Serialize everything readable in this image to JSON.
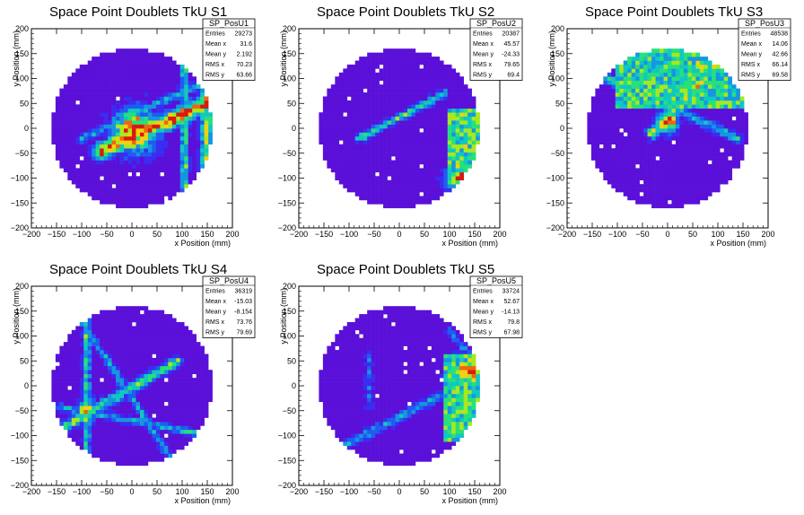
{
  "chart_data": [
    {
      "type": "heatmap",
      "title": "Space Point Doublets TkU S1",
      "xlabel": "x Position (mm)",
      "ylabel": "y Position (mm)",
      "xlim": [
        -200,
        200
      ],
      "ylim": [
        -200,
        200
      ],
      "xticks": [
        -200,
        -150,
        -100,
        -50,
        0,
        50,
        100,
        150,
        200
      ],
      "yticks": [
        -200,
        -150,
        -100,
        -50,
        0,
        50,
        100,
        150,
        200
      ],
      "tick_labels": [
        "−200",
        "−150",
        "−100",
        "−50",
        "0",
        "50",
        "100",
        "150",
        "200"
      ],
      "detector_radius": 160,
      "stats": {
        "name": "SP_PosU1",
        "rows": [
          {
            "label": "Entries",
            "value": "29273"
          },
          {
            "label": "Mean x",
            "value": "31.6"
          },
          {
            "label": "Mean y",
            "value": "2.192"
          },
          {
            "label": "RMS x",
            "value": "70.23"
          },
          {
            "label": "RMS y",
            "value": "63.66"
          }
        ]
      },
      "features": [
        {
          "kind": "band",
          "from": [
            -60,
            -45
          ],
          "to": [
            160,
            55
          ],
          "width": 22,
          "peak": 0.95
        },
        {
          "kind": "band",
          "from": [
            -100,
            -20
          ],
          "to": [
            160,
            100
          ],
          "width": 12,
          "peak": 0.35
        },
        {
          "kind": "band",
          "from": [
            105,
            -150
          ],
          "to": [
            105,
            150
          ],
          "width": 10,
          "peak": 0.55
        },
        {
          "kind": "band",
          "from": [
            150,
            -150
          ],
          "to": [
            150,
            150
          ],
          "width": 20,
          "peak": 0.6
        },
        {
          "kind": "hotspot",
          "at": [
            5,
            -5
          ],
          "radius": 28,
          "peak": 1.0
        }
      ]
    },
    {
      "type": "heatmap",
      "title": "Space Point Doublets TkU S2",
      "xlabel": "x Position (mm)",
      "ylabel": "y Position (mm)",
      "xlim": [
        -200,
        200
      ],
      "ylim": [
        -200,
        200
      ],
      "xticks": [
        -200,
        -150,
        -100,
        -50,
        0,
        50,
        100,
        150,
        200
      ],
      "yticks": [
        -200,
        -150,
        -100,
        -50,
        0,
        50,
        100,
        150,
        200
      ],
      "tick_labels": [
        "−200",
        "−150",
        "−100",
        "−50",
        "0",
        "50",
        "100",
        "150",
        "200"
      ],
      "detector_radius": 160,
      "stats": {
        "name": "SP_PosU2",
        "rows": [
          {
            "label": "Entries",
            "value": "20387"
          },
          {
            "label": "Mean x",
            "value": "45.57"
          },
          {
            "label": "Mean y",
            "value": "-24.33"
          },
          {
            "label": "RMS x",
            "value": "79.65"
          },
          {
            "label": "RMS y",
            "value": "69.4"
          }
        ]
      },
      "features": [
        {
          "kind": "band",
          "from": [
            -80,
            -20
          ],
          "to": [
            90,
            70
          ],
          "width": 10,
          "peak": 0.55
        },
        {
          "kind": "region",
          "xmin": 95,
          "xmax": 165,
          "ymin": -110,
          "ymax": 40,
          "peak": 0.55
        },
        {
          "kind": "hotspot",
          "at": [
            120,
            -100
          ],
          "radius": 18,
          "peak": 0.9
        }
      ]
    },
    {
      "type": "heatmap",
      "title": "Space Point Doublets TkU S3",
      "xlabel": "x Position (mm)",
      "ylabel": "y Position (mm)",
      "xlim": [
        -200,
        200
      ],
      "ylim": [
        -200,
        200
      ],
      "xticks": [
        -200,
        -150,
        -100,
        -50,
        0,
        50,
        100,
        150,
        200
      ],
      "yticks": [
        -200,
        -150,
        -100,
        -50,
        0,
        50,
        100,
        150,
        200
      ],
      "tick_labels": [
        "−200",
        "−150",
        "−100",
        "−50",
        "0",
        "50",
        "100",
        "150",
        "200"
      ],
      "detector_radius": 160,
      "stats": {
        "name": "SP_PosU3",
        "rows": [
          {
            "label": "Entries",
            "value": "48538"
          },
          {
            "label": "Mean x",
            "value": "14.06"
          },
          {
            "label": "Mean y",
            "value": "42.66"
          },
          {
            "label": "RMS x",
            "value": "66.14"
          },
          {
            "label": "RMS y",
            "value": "69.58"
          }
        ]
      },
      "features": [
        {
          "kind": "region",
          "xmin": -100,
          "xmax": 160,
          "ymin": 40,
          "ymax": 160,
          "peak": 0.5
        },
        {
          "kind": "band",
          "from": [
            -30,
            -10
          ],
          "to": [
            120,
            150
          ],
          "width": 16,
          "peak": 0.7
        },
        {
          "kind": "band",
          "from": [
            -120,
            100
          ],
          "to": [
            140,
            -20
          ],
          "width": 12,
          "peak": 0.45
        },
        {
          "kind": "hotspot",
          "at": [
            0,
            15
          ],
          "radius": 14,
          "peak": 1.0
        },
        {
          "kind": "hotspot",
          "at": [
            70,
            120
          ],
          "radius": 22,
          "peak": 0.75
        }
      ]
    },
    {
      "type": "heatmap",
      "title": "Space Point Doublets TkU S4",
      "xlabel": "x Position (mm)",
      "ylabel": "y Position (mm)",
      "xlim": [
        -200,
        200
      ],
      "ylim": [
        -200,
        200
      ],
      "xticks": [
        -200,
        -150,
        -100,
        -50,
        0,
        50,
        100,
        150,
        200
      ],
      "yticks": [
        -200,
        -150,
        -100,
        -50,
        0,
        50,
        100,
        150,
        200
      ],
      "tick_labels": [
        "−200",
        "−150",
        "−100",
        "−50",
        "0",
        "50",
        "100",
        "150",
        "200"
      ],
      "detector_radius": 160,
      "stats": {
        "name": "SP_PosU4",
        "rows": [
          {
            "label": "Entries",
            "value": "36319"
          },
          {
            "label": "Mean x",
            "value": "-15.03"
          },
          {
            "label": "Mean y",
            "value": "-8.154"
          },
          {
            "label": "RMS x",
            "value": "73.76"
          },
          {
            "label": "RMS y",
            "value": "79.69"
          }
        ]
      },
      "features": [
        {
          "kind": "band",
          "from": [
            -90,
            -160
          ],
          "to": [
            -90,
            150
          ],
          "width": 10,
          "peak": 0.5
        },
        {
          "kind": "band",
          "from": [
            -130,
            -80
          ],
          "to": [
            90,
            50
          ],
          "width": 14,
          "peak": 0.55
        },
        {
          "kind": "band",
          "from": [
            -100,
            130
          ],
          "to": [
            80,
            -150
          ],
          "width": 10,
          "peak": 0.35
        },
        {
          "kind": "band",
          "from": [
            -160,
            -40
          ],
          "to": [
            160,
            -100
          ],
          "width": 10,
          "peak": 0.4
        },
        {
          "kind": "hotspot",
          "at": [
            -90,
            -50
          ],
          "radius": 14,
          "peak": 0.75
        }
      ]
    },
    {
      "type": "heatmap",
      "title": "Space Point Doublets TkU S5",
      "xlabel": "x Position (mm)",
      "ylabel": "y Position (mm)",
      "xlim": [
        -200,
        200
      ],
      "ylim": [
        -200,
        200
      ],
      "xticks": [
        -200,
        -150,
        -100,
        -50,
        0,
        50,
        100,
        150,
        200
      ],
      "yticks": [
        -200,
        -150,
        -100,
        -50,
        0,
        50,
        100,
        150,
        200
      ],
      "tick_labels": [
        "−200",
        "−150",
        "−100",
        "−50",
        "0",
        "50",
        "100",
        "150",
        "200"
      ],
      "detector_radius": 160,
      "stats": {
        "name": "SP_PosU5",
        "rows": [
          {
            "label": "Entries",
            "value": "33724"
          },
          {
            "label": "Mean x",
            "value": "52.67"
          },
          {
            "label": "Mean y",
            "value": "-14.13"
          },
          {
            "label": "RMS x",
            "value": "79.8"
          },
          {
            "label": "RMS y",
            "value": "67.98"
          }
        ]
      },
      "features": [
        {
          "kind": "region",
          "xmin": 90,
          "xmax": 165,
          "ymin": -110,
          "ymax": 60,
          "peak": 0.55
        },
        {
          "kind": "band",
          "from": [
            -60,
            60
          ],
          "to": [
            -60,
            -40
          ],
          "width": 10,
          "peak": 0.25
        },
        {
          "kind": "band",
          "from": [
            -110,
            -120
          ],
          "to": [
            160,
            20
          ],
          "width": 12,
          "peak": 0.35
        },
        {
          "kind": "band",
          "from": [
            100,
            110
          ],
          "to": [
            160,
            40
          ],
          "width": 10,
          "peak": 0.3
        },
        {
          "kind": "hotspot",
          "at": [
            140,
            30
          ],
          "radius": 22,
          "peak": 0.95
        }
      ]
    }
  ],
  "palette": [
    "#5a10d8",
    "#3a2cf0",
    "#1f5cf2",
    "#1596e0",
    "#10c8c0",
    "#28e07a",
    "#a8e81e",
    "#f4d012",
    "#f06410",
    "#d81a10"
  ]
}
